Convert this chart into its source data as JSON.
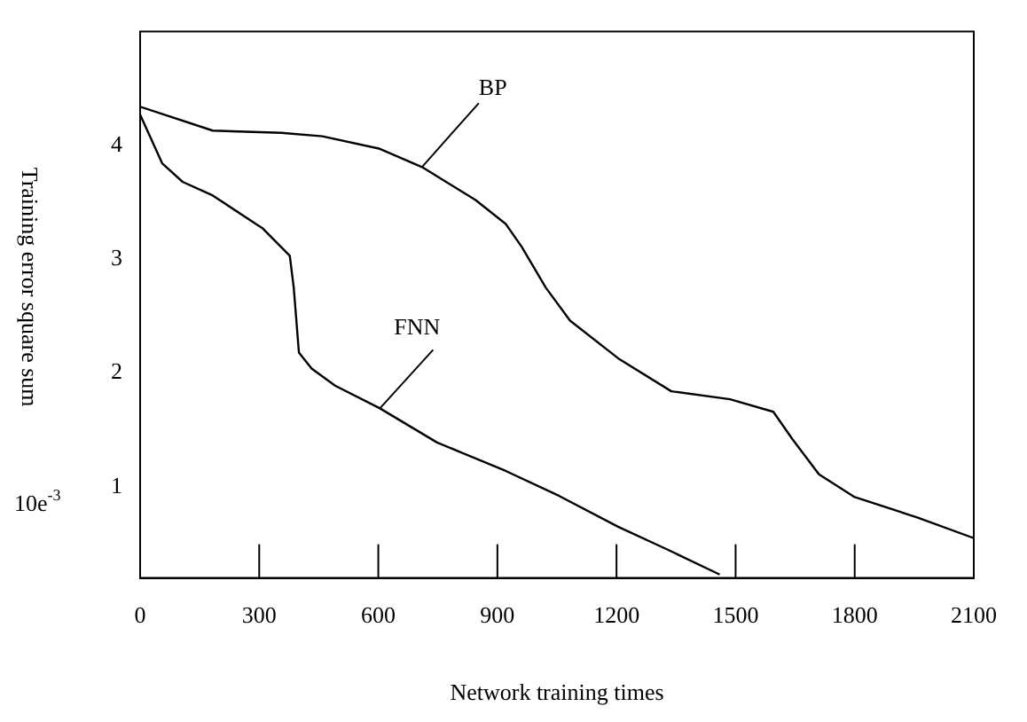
{
  "chart_data": {
    "type": "line",
    "xlabel": "Network training times",
    "ylabel": "Training error square sum",
    "annotations": [
      "10e$^{-3}$"
    ],
    "xlim": [
      0,
      2100
    ],
    "xticks": [
      0,
      300,
      600,
      900,
      1200,
      1500,
      1800,
      2100
    ],
    "ylim": [
      0.2,
      5
    ],
    "yticks": [
      1,
      2,
      3,
      4
    ],
    "grid": false,
    "legend": false,
    "marker": "none",
    "line_style": "solid",
    "series": [
      {
        "name": "BP",
        "color": "#000000",
        "x": [
          0,
          183,
          355,
          459,
          604,
          710,
          845,
          921,
          961,
          1022,
          1083,
          1204,
          1338,
          1486,
          1595,
          1643,
          1710,
          1800,
          1959,
          2100
        ],
        "values": [
          4.34,
          4.13,
          4.11,
          4.08,
          3.97,
          3.81,
          3.52,
          3.31,
          3.11,
          2.75,
          2.46,
          2.13,
          1.84,
          1.77,
          1.66,
          1.42,
          1.11,
          0.91,
          0.73,
          0.55
        ]
      },
      {
        "name": "FNN",
        "color": "#000000",
        "x": [
          0,
          56,
          107,
          183,
          309,
          377,
          387,
          400,
          432,
          491,
          604,
          748,
          921,
          1056,
          1204,
          1328,
          1460
        ],
        "values": [
          4.27,
          3.84,
          3.68,
          3.56,
          3.27,
          3.03,
          2.75,
          2.18,
          2.04,
          1.89,
          1.69,
          1.39,
          1.14,
          0.92,
          0.65,
          0.45,
          0.23
        ]
      }
    ]
  }
}
